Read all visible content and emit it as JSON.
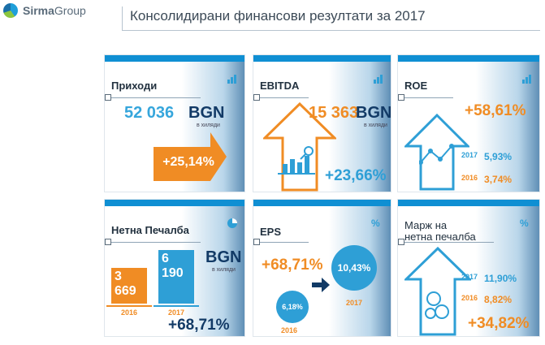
{
  "logo": {
    "brand": "Sirma",
    "suffix": "Group"
  },
  "title": "Консолидирани финансови резултати за 2017",
  "tiles": {
    "revenue": {
      "label": "Приходи",
      "value": "52 036",
      "unit": "BGN",
      "unit_note": "в хиляди",
      "growth": "+25,14%"
    },
    "ebitda": {
      "label": "EBITDA",
      "value": "15 363",
      "unit": "BGN",
      "unit_note": "в хиляди",
      "growth": "+23,66%"
    },
    "roe": {
      "label": "ROE",
      "growth": "+58,61%",
      "y2017": "2017",
      "v2017": "5,93%",
      "y2016": "2016",
      "v2016": "3,74%"
    },
    "net_profit": {
      "label": "Нетна Печалба",
      "v2016": "3 669",
      "v2017": "6 190",
      "unit": "BGN",
      "unit_note": "в хиляди",
      "y2016": "2016",
      "y2017": "2017",
      "growth": "+68,71%"
    },
    "eps": {
      "label": "EPS",
      "growth": "+68,71%",
      "v2016": "6,18%",
      "v2017": "10,43%",
      "y2016": "2016",
      "y2017": "2017"
    },
    "margin": {
      "label_line1": "Марж на",
      "label_line2": "нетна печалба",
      "y2017": "2017",
      "v2017": "11,90%",
      "y2016": "2016",
      "v2016": "8,82%",
      "growth": "+34,82%"
    }
  },
  "icons": {
    "bars": "bar-chart-icon",
    "pie": "pie-chart-icon",
    "percent": "%"
  },
  "colors": {
    "blue": "#2e9fd6",
    "orange": "#f08c24",
    "band": "#0f8fd3"
  }
}
